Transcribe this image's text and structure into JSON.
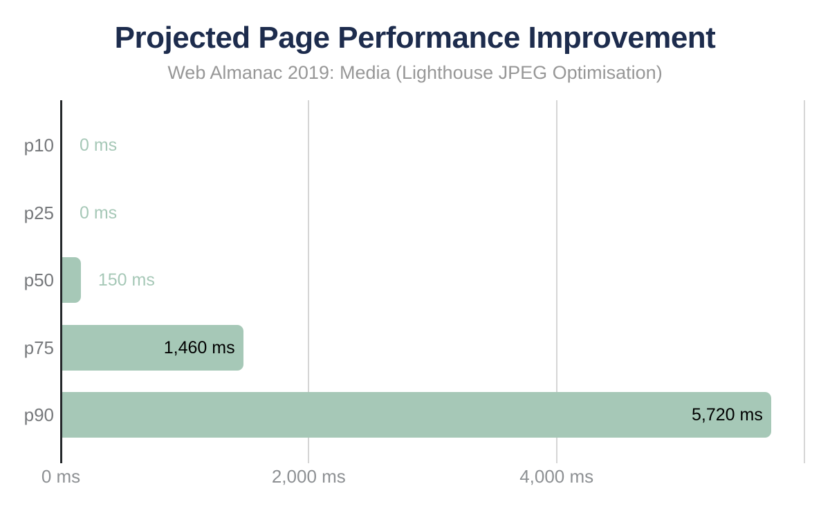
{
  "chart_data": {
    "type": "bar",
    "orientation": "horizontal",
    "title": "Projected Page Performance Improvement",
    "subtitle": "Web Almanac 2019: Media (Lighthouse JPEG Optimisation)",
    "categories": [
      "p10",
      "p25",
      "p50",
      "p75",
      "p90"
    ],
    "values": [
      0,
      0,
      150,
      1460,
      5720
    ],
    "value_labels": [
      "0 ms",
      "0 ms",
      "150 ms",
      "1,460 ms",
      "5,720 ms"
    ],
    "unit": "ms",
    "xlim": [
      0,
      6000
    ],
    "x_ticks": [
      {
        "value": 0,
        "label": "0 ms"
      },
      {
        "value": 2000,
        "label": "2,000 ms"
      },
      {
        "value": 4000,
        "label": "4,000 ms"
      },
      {
        "value": 6000,
        "label": ""
      }
    ],
    "grid": true,
    "legend": "none",
    "colors": {
      "bar": "#a6c8b7",
      "title": "#1d2c4d",
      "subtitle": "#979797",
      "category_label": "#76787b",
      "tick_label": "#8d9093",
      "gridline": "#d5d5d5",
      "axis_line": "#24272a",
      "value_label_inside": "#000000",
      "value_label_outside": "#a6c8b7"
    }
  }
}
